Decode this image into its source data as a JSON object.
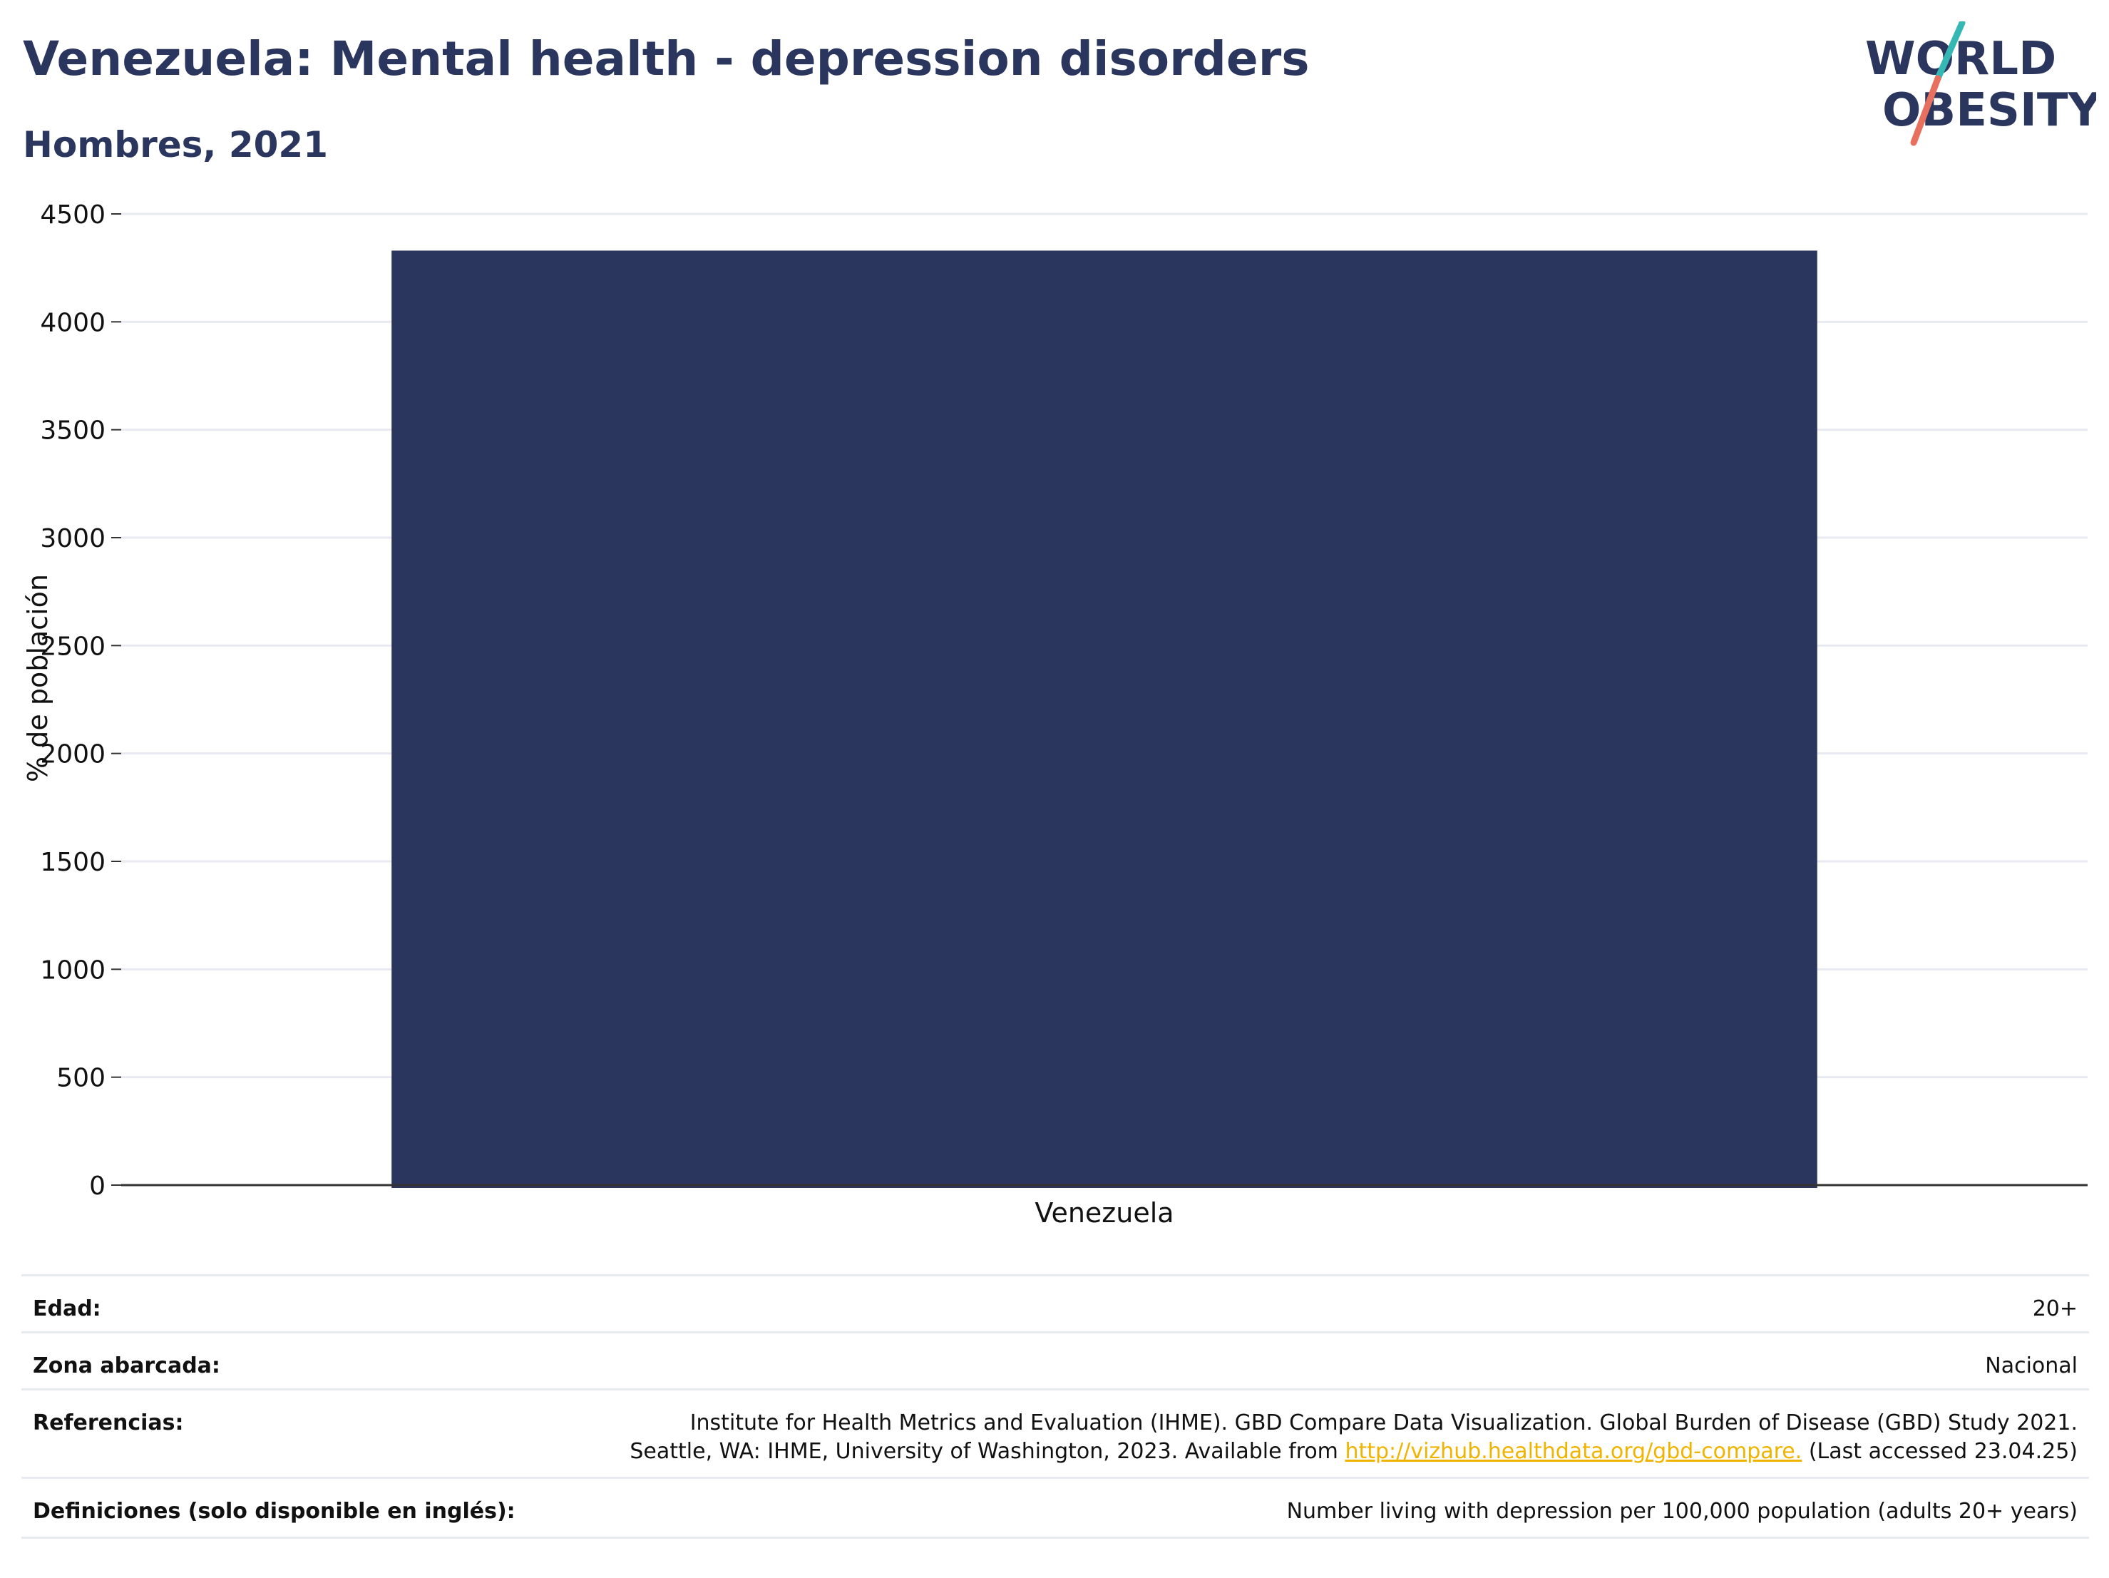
{
  "header": {
    "title": "Venezuela: Mental health - depression disorders",
    "subtitle": "Hombres, 2021"
  },
  "logo": {
    "line1": "WORLD",
    "line2": "OBESITY",
    "colors": {
      "text": "#2b365f",
      "slash_top": "#35b8b3",
      "slash_bottom": "#e8705f"
    }
  },
  "colors": {
    "bar": "#2b365f",
    "grid": "#e8eaf2",
    "axis": "#333333",
    "tick_text": "#111111"
  },
  "chart_data": {
    "type": "bar",
    "categories": [
      "Venezuela"
    ],
    "values": [
      4330
    ],
    "ylabel": "% de población",
    "xlabel": "",
    "ylim": [
      0,
      4500
    ],
    "yticks": [
      0,
      500,
      1000,
      1500,
      2000,
      2500,
      3000,
      3500,
      4000,
      4500
    ],
    "grid": true,
    "legend": "none"
  },
  "meta": [
    {
      "label": "Edad:",
      "value": "20+"
    },
    {
      "label": "Zona abarcada:",
      "value": "Nacional"
    },
    {
      "label": "Referencias:",
      "line1": "Institute for Health Metrics and Evaluation (IHME). GBD Compare Data Visualization. Global Burden of Disease (GBD) Study 2021.",
      "line2_prefix": "Seattle, WA: IHME, University of Washington, 2023. Available from ",
      "link": "http://vizhub.healthdata.org/gbd-compare.",
      "line2_suffix": " (Last accessed 23.04.25)"
    },
    {
      "label": "Definiciones (solo disponible en inglés):",
      "value": "Number living with depression per 100,000 population (adults 20+ years)"
    }
  ]
}
